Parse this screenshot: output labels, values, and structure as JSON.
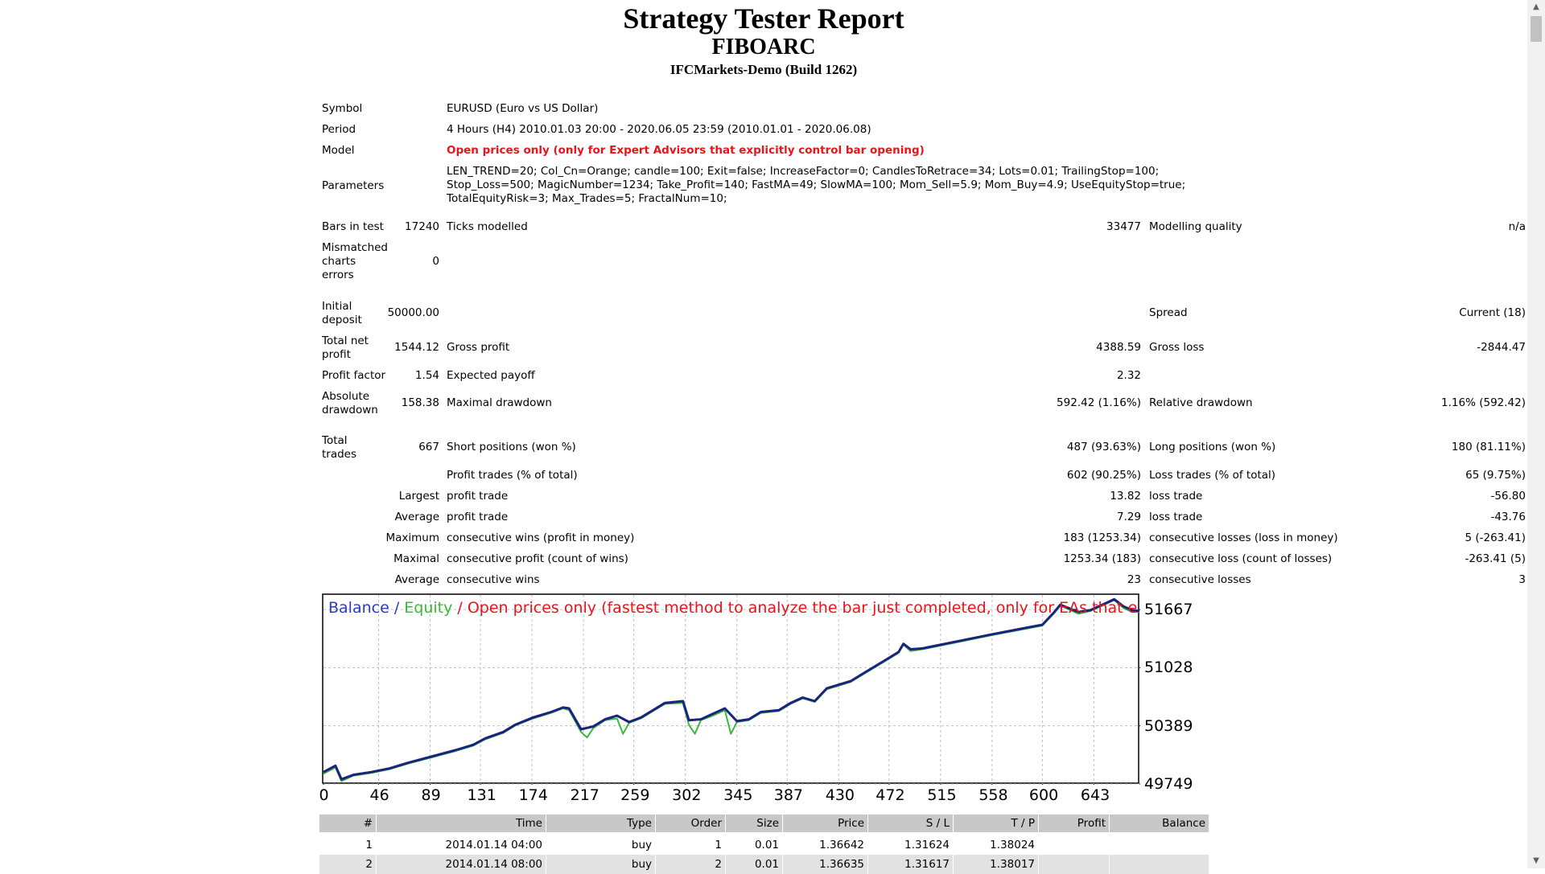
{
  "header": {
    "title": "Strategy Tester Report",
    "expert": "FIBOARC",
    "server": "IFCMarkets-Demo (Build 1262)"
  },
  "info": {
    "symbol_label": "Symbol",
    "symbol_value": "EURUSD (Euro vs US Dollar)",
    "period_label": "Period",
    "period_value": "4 Hours (H4) 2010.01.03 20:00 - 2020.06.05 23:59 (2010.01.01 - 2020.06.08)",
    "model_label": "Model",
    "model_value": "Open prices only (only for Expert Advisors that explicitly control bar opening)",
    "params_label": "Parameters",
    "params_line1": "LEN_TREND=20; Col_Cn=Orange; candle=100; Exit=false; IncreaseFactor=0; CandlesToRetrace=34; Lots=0.01; TrailingStop=100;",
    "params_line2": "Stop_Loss=500; MagicNumber=1234; Take_Profit=140; FastMA=49; SlowMA=100; Mom_Sell=5.9; Mom_Buy=4.9; UseEquityStop=true;",
    "params_line3": "TotalEquityRisk=3; Max_Trades=5; FractalNum=10;",
    "bars_label": "Bars in test",
    "bars_value": "17240",
    "ticks_label": "Ticks modelled",
    "ticks_value": "33477",
    "quality_label": "Modelling quality",
    "quality_value": "n/a",
    "mismatch_label": "Mismatched charts errors",
    "mismatch_value": "0",
    "deposit_label": "Initial deposit",
    "deposit_value": "50000.00",
    "spread_label": "Spread",
    "spread_value": "Current (18)",
    "netprofit_label": "Total net profit",
    "netprofit_value": "1544.12",
    "grossprofit_label": "Gross profit",
    "grossprofit_value": "4388.59",
    "grossloss_label": "Gross loss",
    "grossloss_value": "-2844.47",
    "pf_label": "Profit factor",
    "pf_value": "1.54",
    "payoff_label": "Expected payoff",
    "payoff_value": "2.32",
    "absdd_label": "Absolute drawdown",
    "absdd_value": "158.38",
    "maxdd_label": "Maximal drawdown",
    "maxdd_value": "592.42 (1.16%)",
    "reldd_label": "Relative drawdown",
    "reldd_value": "1.16% (592.42)",
    "trades_label": "Total trades",
    "trades_value": "667",
    "short_label": "Short positions (won %)",
    "short_value": "487 (93.63%)",
    "long_label": "Long positions (won %)",
    "long_value": "180 (81.11%)",
    "ptrades_label": "Profit trades (% of total)",
    "ptrades_value": "602 (90.25%)",
    "ltrades_label": "Loss trades (% of total)",
    "ltrades_value": "65 (9.75%)",
    "largest_label": "Largest",
    "lprofit_label": "profit trade",
    "lprofit_value": "13.82",
    "lloss_label": "loss trade",
    "lloss_value": "-56.80",
    "average_label": "Average",
    "aprofit_label": "profit trade",
    "aprofit_value": "7.29",
    "aloss_label": "loss trade",
    "aloss_value": "-43.76",
    "maximum_label": "Maximum",
    "mcw_label": "consecutive wins (profit in money)",
    "mcw_value": "183 (1253.34)",
    "mcl_label": "consecutive losses (loss in money)",
    "mcl_value": "5 (-263.41)",
    "maximal_label": "Maximal",
    "mcp_label": "consecutive profit (count of wins)",
    "mcp_value": "1253.34 (183)",
    "mcloss_label": "consecutive loss (count of losses)",
    "mcloss_value": "-263.41 (5)",
    "average2_label": "Average",
    "acw_label": "consecutive wins",
    "acw_value": "23",
    "acl_label": "consecutive losses",
    "acl_value": "3"
  },
  "chart_data": {
    "type": "line",
    "legend": {
      "balance": "Balance",
      "sep1": " / ",
      "equity": "Equity",
      "sep2": " / ",
      "model": "Open prices only (fastest method to analyze the bar just completed, only for EAs that explicitly control bars opening)"
    },
    "x_ticks": [
      "0",
      "46",
      "89",
      "131",
      "174",
      "217",
      "259",
      "302",
      "345",
      "387",
      "430",
      "472",
      "515",
      "558",
      "600",
      "643"
    ],
    "y_ticks": [
      "51667",
      "51028",
      "50389",
      "49749"
    ],
    "ylim": [
      49749,
      51827
    ],
    "xlim": [
      0,
      681
    ],
    "series": [
      {
        "name": "Balance",
        "color": "#1a237e",
        "x": [
          0,
          10,
          15,
          25,
          40,
          55,
          70,
          90,
          110,
          125,
          135,
          150,
          160,
          175,
          190,
          200,
          205,
          215,
          225,
          235,
          245,
          255,
          265,
          275,
          285,
          300,
          305,
          315,
          325,
          335,
          345,
          355,
          365,
          380,
          390,
          400,
          410,
          420,
          430,
          440,
          450,
          460,
          470,
          480,
          484,
          490,
          500,
          515,
          530,
          545,
          560,
          580,
          600,
          610,
          615,
          630,
          640,
          655,
          660,
          668,
          675,
          681
        ],
        "y": [
          49880,
          49950,
          49800,
          49850,
          49880,
          49920,
          49980,
          50050,
          50120,
          50180,
          50250,
          50320,
          50400,
          50480,
          50540,
          50590,
          50580,
          50350,
          50380,
          50460,
          50500,
          50430,
          50480,
          50560,
          50640,
          50660,
          50450,
          50460,
          50520,
          50580,
          50440,
          50460,
          50540,
          50560,
          50640,
          50700,
          50660,
          50800,
          50840,
          50880,
          50960,
          51040,
          51120,
          51200,
          51290,
          51230,
          51240,
          51280,
          51320,
          51360,
          51400,
          51450,
          51500,
          51640,
          51720,
          51640,
          51660,
          51750,
          51780,
          51700,
          51660,
          51650
        ]
      },
      {
        "name": "Equity",
        "color": "#3cb83c",
        "x": [
          0,
          10,
          15,
          25,
          40,
          55,
          70,
          90,
          110,
          125,
          135,
          150,
          160,
          175,
          190,
          200,
          205,
          215,
          220,
          225,
          235,
          245,
          250,
          255,
          265,
          275,
          285,
          300,
          305,
          310,
          315,
          325,
          335,
          340,
          345,
          355,
          365,
          380,
          390,
          400,
          410,
          420,
          430,
          440,
          450,
          460,
          470,
          480,
          484,
          490,
          500,
          515,
          530,
          545,
          560,
          580,
          600,
          610,
          615,
          630,
          640,
          655,
          660,
          668,
          675,
          681
        ],
        "y": [
          49860,
          49930,
          49780,
          49840,
          49870,
          49910,
          49970,
          50040,
          50110,
          50170,
          50240,
          50310,
          50390,
          50470,
          50530,
          50580,
          50560,
          50320,
          50260,
          50360,
          50450,
          50470,
          50300,
          50420,
          50470,
          50550,
          50630,
          50640,
          50400,
          50300,
          50450,
          50500,
          50560,
          50300,
          50430,
          50450,
          50530,
          50550,
          50630,
          50690,
          50650,
          50790,
          50830,
          50870,
          50950,
          51030,
          51110,
          51190,
          51280,
          51210,
          51230,
          51270,
          51310,
          51350,
          51390,
          51440,
          51490,
          51630,
          51710,
          51620,
          51650,
          51740,
          51770,
          51680,
          51640,
          51640
        ]
      }
    ]
  },
  "table": {
    "headers": [
      "#",
      "Time",
      "Type",
      "Order",
      "Size",
      "Price",
      "S / L",
      "T / P",
      "Profit",
      "Balance"
    ],
    "rows": [
      [
        "1",
        "2014.01.14 04:00",
        "buy",
        "1",
        "0.01",
        "1.36642",
        "1.31624",
        "1.38024",
        "",
        ""
      ],
      [
        "2",
        "2014.01.14 08:00",
        "buy",
        "2",
        "0.01",
        "1.36635",
        "1.31617",
        "1.38017",
        "",
        ""
      ]
    ]
  }
}
